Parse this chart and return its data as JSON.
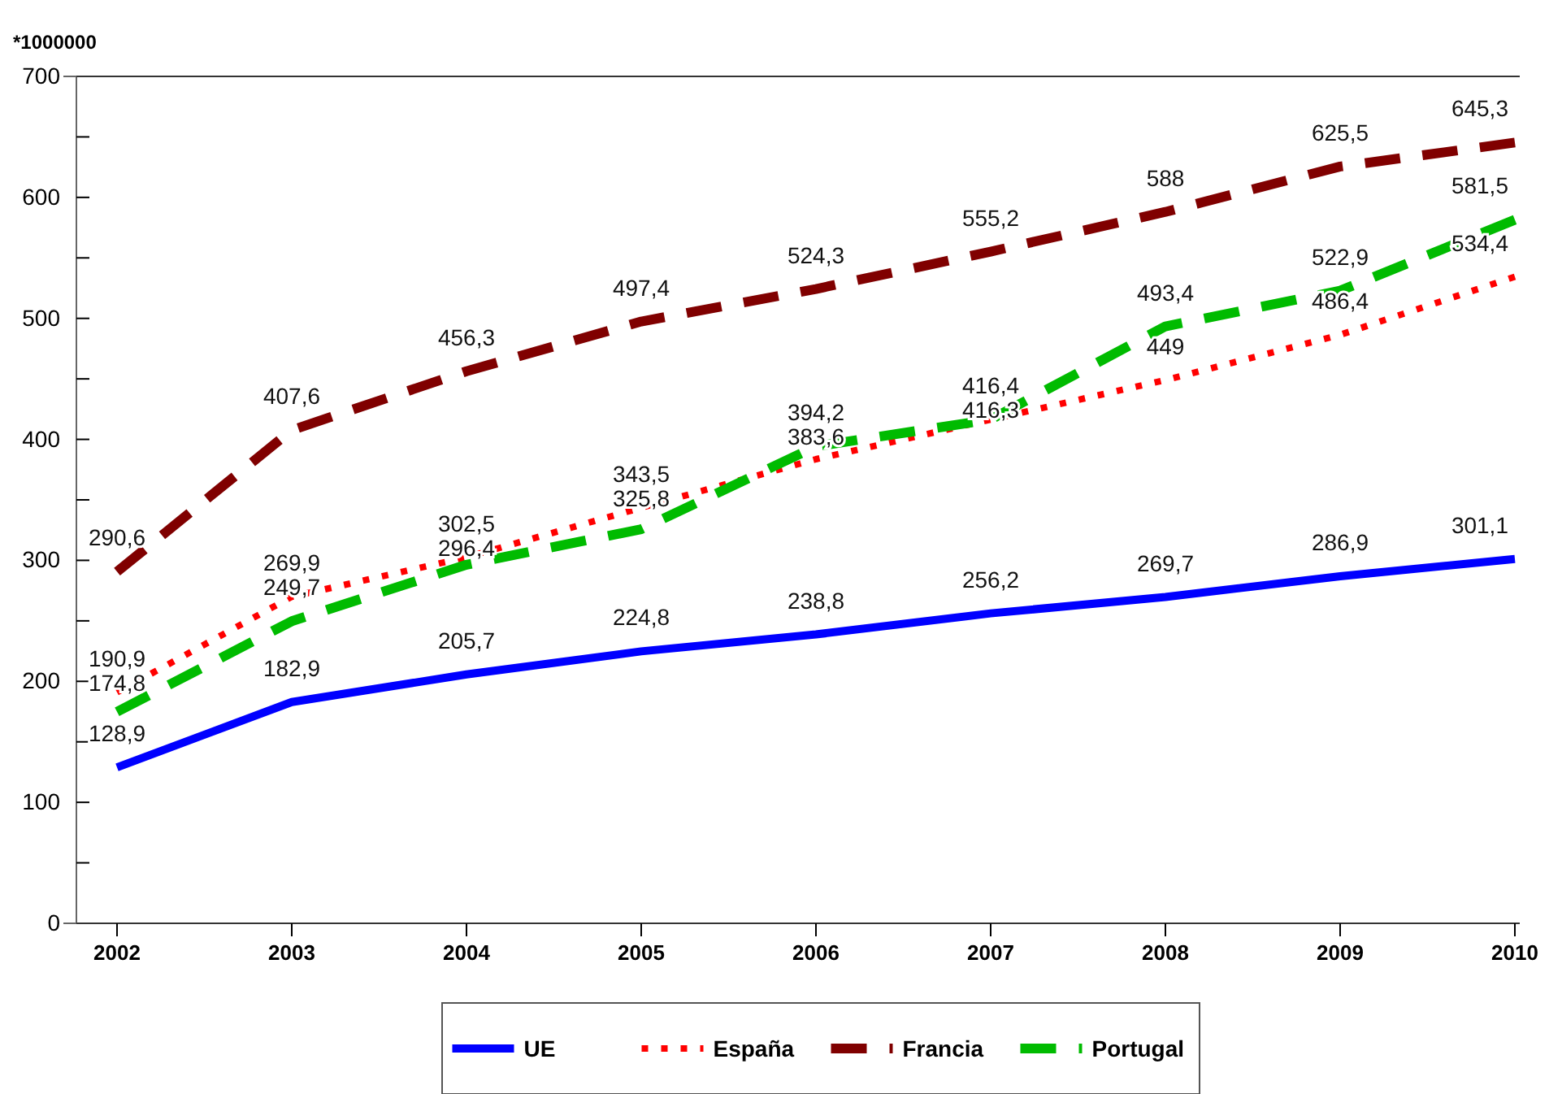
{
  "chart_data": {
    "type": "line",
    "ylabel": "*1000000",
    "categories": [
      "2002",
      "2003",
      "2004",
      "2005",
      "2006",
      "2007",
      "2008",
      "2009",
      "2010"
    ],
    "series": [
      {
        "name": "UE",
        "color": "#0000ff",
        "line_style": "solid",
        "values": [
          128.9,
          182.9,
          205.7,
          224.8,
          238.8,
          256.2,
          269.7,
          286.9,
          301.1
        ],
        "value_labels": [
          "128,9",
          "182,9",
          "205,7",
          "224,8",
          "238,8",
          "256,2",
          "269,7",
          "286,9",
          "301,1"
        ]
      },
      {
        "name": "España",
        "color": "#ff0000",
        "line_style": "dotted",
        "values": [
          190.9,
          269.9,
          302.5,
          343.5,
          383.6,
          416.3,
          449,
          486.4,
          534.4
        ],
        "value_labels": [
          "190,9",
          "269,9",
          "302,5",
          "343,5",
          "383,6",
          "416,3",
          "449",
          "486,4",
          "534,4"
        ]
      },
      {
        "name": "Francia",
        "color": "#800000",
        "line_style": "dashed",
        "values": [
          290.6,
          407.6,
          456.3,
          497.4,
          524.3,
          555.2,
          588,
          625.5,
          645.3
        ],
        "value_labels": [
          "290,6",
          "407,6",
          "456,3",
          "497,4",
          "524,3",
          "555,2",
          "588",
          "625,5",
          "645,3"
        ]
      },
      {
        "name": "Portugal",
        "color": "#00bb00",
        "line_style": "dashed",
        "values": [
          174.8,
          249.7,
          296.4,
          325.8,
          394.2,
          416.4,
          493.4,
          522.9,
          581.5
        ],
        "value_labels": [
          "174,8",
          "249,7",
          "296,4",
          "325,8",
          "394,2",
          "416,4",
          "493,4",
          "522,9",
          "581,5"
        ]
      }
    ],
    "ylim": [
      0,
      700
    ],
    "yticks": [
      0,
      {
        "value": 50,
        "label": null
      },
      100,
      {
        "value": 150,
        "label": null
      },
      200,
      {
        "value": 250,
        "label": null
      },
      300,
      {
        "value": 350,
        "label": null
      },
      400,
      {
        "value": 450,
        "label": null
      },
      500,
      {
        "value": 550,
        "label": null
      },
      600,
      {
        "value": 650,
        "label": null
      },
      700
    ],
    "legend": "bottom",
    "marker": "none",
    "grid": false
  }
}
